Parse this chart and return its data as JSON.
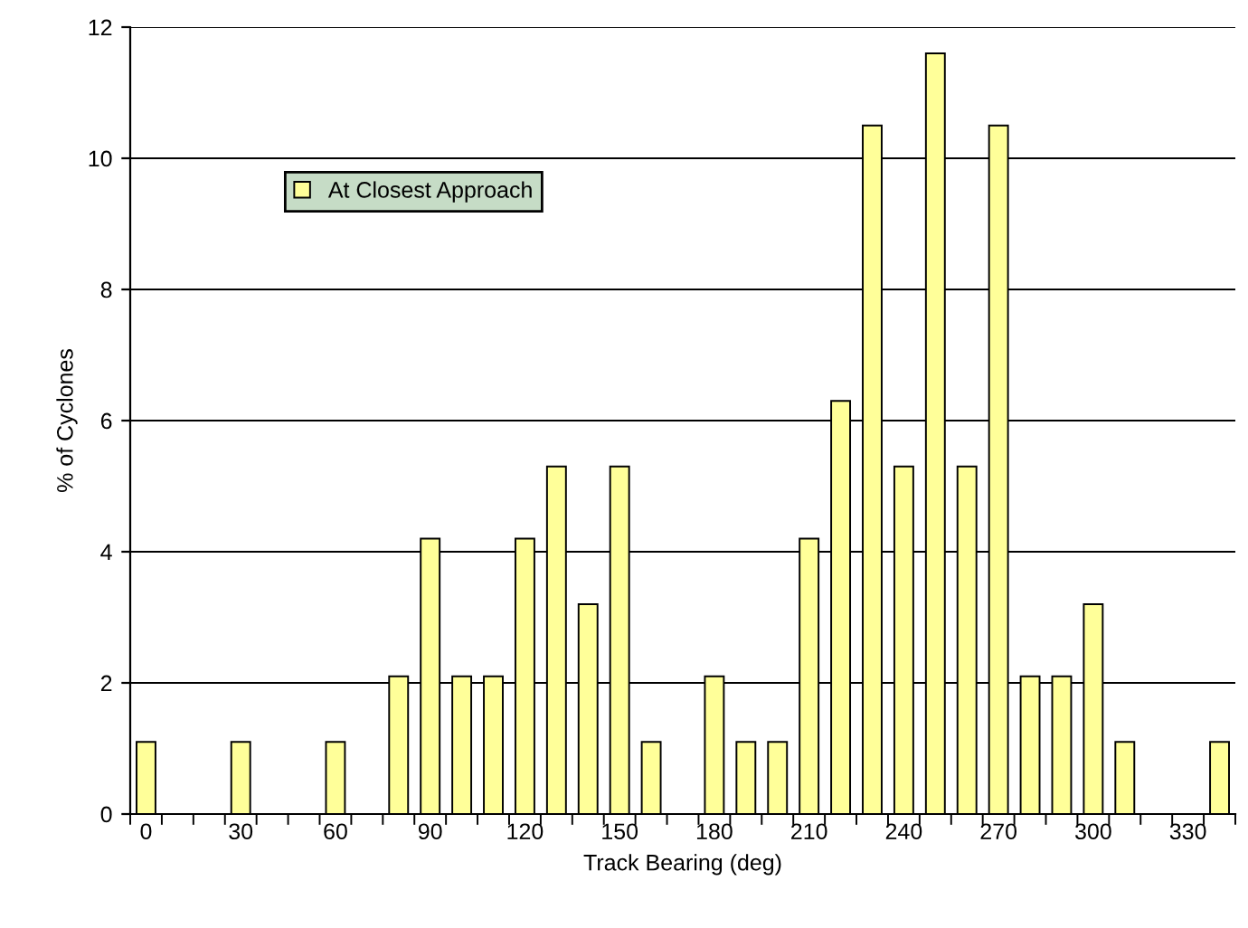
{
  "chart_data": {
    "type": "bar",
    "xlabel": "Track Bearing (deg)",
    "ylabel": "% of Cyclones",
    "categories": [
      "0",
      null,
      null,
      "30",
      null,
      null,
      "60",
      null,
      null,
      "90",
      null,
      null,
      "120",
      null,
      null,
      "150",
      null,
      null,
      "180",
      null,
      null,
      "210",
      null,
      null,
      "240",
      null,
      null,
      "270",
      null,
      null,
      "300",
      null,
      null,
      "330",
      null
    ],
    "series": [
      {
        "name": "At Closest Approach",
        "color": "#ffff99",
        "values": [
          1.1,
          0,
          0,
          1.1,
          0,
          0,
          1.1,
          0,
          2.1,
          4.2,
          2.1,
          2.1,
          4.2,
          5.3,
          3.2,
          5.3,
          1.1,
          0,
          2.1,
          1.1,
          1.1,
          4.2,
          6.3,
          10.5,
          5.3,
          11.6,
          5.3,
          10.5,
          2.1,
          2.1,
          3.2,
          1.1,
          0,
          0,
          1.1
        ]
      }
    ],
    "ylim": [
      0,
      12
    ],
    "yticks": [
      0,
      2,
      4,
      6,
      8,
      10,
      12
    ],
    "grid": "y",
    "legend": "top left"
  }
}
